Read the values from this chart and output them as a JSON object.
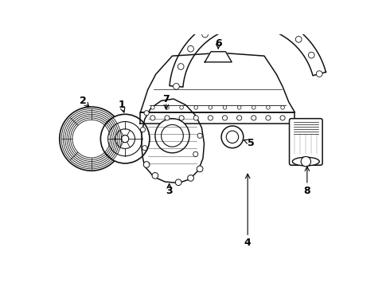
{
  "bg_color": "#ffffff",
  "lc": "#111111",
  "lw": 1.1,
  "fig_w": 4.9,
  "fig_h": 3.6,
  "dpi": 100,
  "xlim": [
    0,
    490
  ],
  "ylim": [
    0,
    360
  ]
}
